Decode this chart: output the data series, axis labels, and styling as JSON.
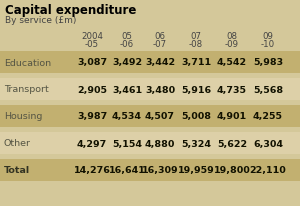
{
  "title": "Capital expenditure",
  "subtitle": "By service (£m)",
  "col_headers_line1": [
    "2004",
    "05",
    "06",
    "07",
    "08",
    "09"
  ],
  "col_headers_line2": [
    "-05",
    "-06",
    "-07",
    "-08",
    "-09",
    "-10"
  ],
  "rows": [
    {
      "label": "Education",
      "values": [
        "3,087",
        "3,492",
        "3,442",
        "3,711",
        "4,542",
        "5,983"
      ],
      "shaded": true
    },
    {
      "label": "Transport",
      "values": [
        "2,905",
        "3,461",
        "3,480",
        "5,916",
        "4,735",
        "5,568"
      ],
      "shaded": false
    },
    {
      "label": "Housing",
      "values": [
        "3,987",
        "4,534",
        "4,507",
        "5,008",
        "4,901",
        "4,255"
      ],
      "shaded": true
    },
    {
      "label": "Other",
      "values": [
        "4,297",
        "5,154",
        "4,880",
        "5,324",
        "5,622",
        "6,304"
      ],
      "shaded": false
    },
    {
      "label": "Total",
      "values": [
        "14,276",
        "16,641",
        "16,309",
        "19,959",
        "19,800",
        "22,110"
      ],
      "shaded": true
    }
  ],
  "bg_color": "#d4c89a",
  "shaded_color": "#c2b070",
  "unshaded_color": "#ddd0a8",
  "title_color": "#000000",
  "text_color": "#444444",
  "value_color": "#111100",
  "label_color": "#555544",
  "total_label_color": "#333322"
}
